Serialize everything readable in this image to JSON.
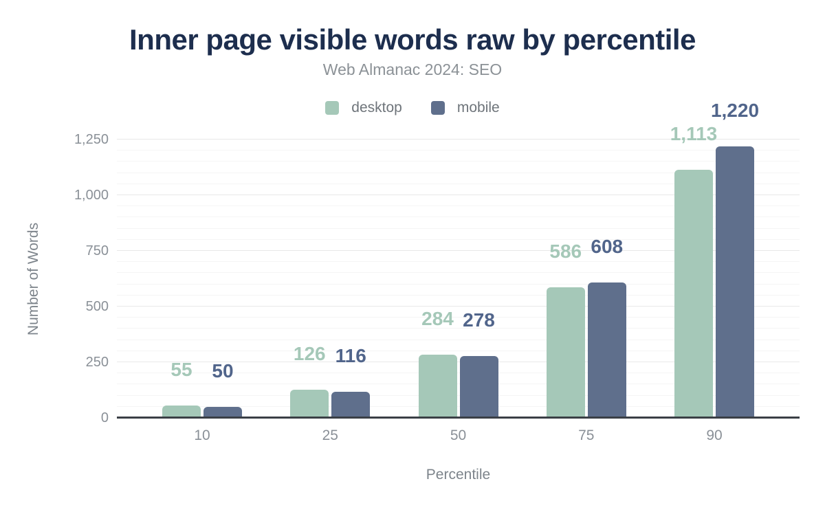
{
  "chart_data": {
    "type": "bar",
    "title": "Inner page visible words raw by percentile",
    "subtitle": "Web Almanac 2024: SEO",
    "xlabel": "Percentile",
    "ylabel": "Number of Words",
    "categories": [
      "10",
      "25",
      "50",
      "75",
      "90"
    ],
    "series": [
      {
        "name": "desktop",
        "color": "#a5c8b8",
        "label_color": "#a5c8b8",
        "values": [
          55,
          126,
          284,
          586,
          1113
        ],
        "value_labels": [
          "55",
          "126",
          "284",
          "586",
          "1,113"
        ]
      },
      {
        "name": "mobile",
        "color": "#5f6f8c",
        "label_color": "#51658b",
        "values": [
          50,
          116,
          278,
          608,
          1220
        ],
        "value_labels": [
          "50",
          "116",
          "278",
          "608",
          "1,220"
        ]
      }
    ],
    "ylim": [
      0,
      1250
    ],
    "y_ticks": [
      {
        "value": 0,
        "label": "0"
      },
      {
        "value": 250,
        "label": "250"
      },
      {
        "value": 500,
        "label": "500"
      },
      {
        "value": 750,
        "label": "750"
      },
      {
        "value": 1000,
        "label": "1,000"
      },
      {
        "value": 1250,
        "label": "1,250"
      }
    ],
    "grid": {
      "show": true,
      "major_interval": 250,
      "minor_interval": 50
    },
    "legend_position": "top",
    "axis_line_color": "#3a3f45"
  }
}
